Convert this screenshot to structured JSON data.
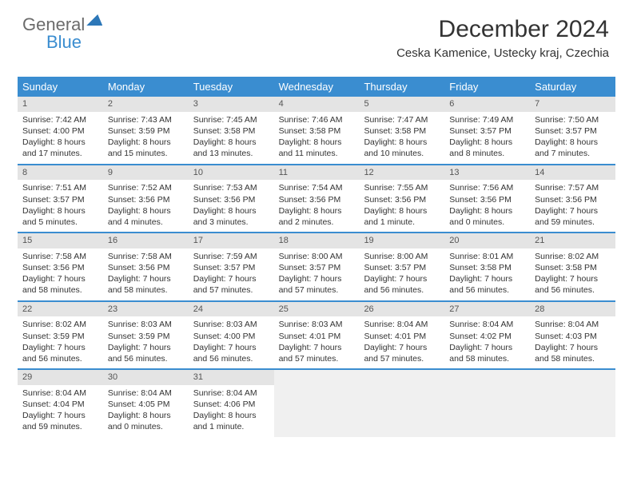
{
  "logo": {
    "part1": "General",
    "part2": "Blue"
  },
  "title": "December 2024",
  "location": "Ceska Kamenice, Ustecky kraj, Czechia",
  "colors": {
    "header_bg": "#3a8dd0",
    "daynum_bg": "#e4e4e4",
    "week_border": "#3a8dd0",
    "empty_bg": "#f0f0f0",
    "text": "#333333"
  },
  "calendar": {
    "day_headers": [
      "Sunday",
      "Monday",
      "Tuesday",
      "Wednesday",
      "Thursday",
      "Friday",
      "Saturday"
    ],
    "weeks": [
      [
        {
          "day": "1",
          "sunrise": "Sunrise: 7:42 AM",
          "sunset": "Sunset: 4:00 PM",
          "daylight1": "Daylight: 8 hours",
          "daylight2": "and 17 minutes."
        },
        {
          "day": "2",
          "sunrise": "Sunrise: 7:43 AM",
          "sunset": "Sunset: 3:59 PM",
          "daylight1": "Daylight: 8 hours",
          "daylight2": "and 15 minutes."
        },
        {
          "day": "3",
          "sunrise": "Sunrise: 7:45 AM",
          "sunset": "Sunset: 3:58 PM",
          "daylight1": "Daylight: 8 hours",
          "daylight2": "and 13 minutes."
        },
        {
          "day": "4",
          "sunrise": "Sunrise: 7:46 AM",
          "sunset": "Sunset: 3:58 PM",
          "daylight1": "Daylight: 8 hours",
          "daylight2": "and 11 minutes."
        },
        {
          "day": "5",
          "sunrise": "Sunrise: 7:47 AM",
          "sunset": "Sunset: 3:58 PM",
          "daylight1": "Daylight: 8 hours",
          "daylight2": "and 10 minutes."
        },
        {
          "day": "6",
          "sunrise": "Sunrise: 7:49 AM",
          "sunset": "Sunset: 3:57 PM",
          "daylight1": "Daylight: 8 hours",
          "daylight2": "and 8 minutes."
        },
        {
          "day": "7",
          "sunrise": "Sunrise: 7:50 AM",
          "sunset": "Sunset: 3:57 PM",
          "daylight1": "Daylight: 8 hours",
          "daylight2": "and 7 minutes."
        }
      ],
      [
        {
          "day": "8",
          "sunrise": "Sunrise: 7:51 AM",
          "sunset": "Sunset: 3:57 PM",
          "daylight1": "Daylight: 8 hours",
          "daylight2": "and 5 minutes."
        },
        {
          "day": "9",
          "sunrise": "Sunrise: 7:52 AM",
          "sunset": "Sunset: 3:56 PM",
          "daylight1": "Daylight: 8 hours",
          "daylight2": "and 4 minutes."
        },
        {
          "day": "10",
          "sunrise": "Sunrise: 7:53 AM",
          "sunset": "Sunset: 3:56 PM",
          "daylight1": "Daylight: 8 hours",
          "daylight2": "and 3 minutes."
        },
        {
          "day": "11",
          "sunrise": "Sunrise: 7:54 AM",
          "sunset": "Sunset: 3:56 PM",
          "daylight1": "Daylight: 8 hours",
          "daylight2": "and 2 minutes."
        },
        {
          "day": "12",
          "sunrise": "Sunrise: 7:55 AM",
          "sunset": "Sunset: 3:56 PM",
          "daylight1": "Daylight: 8 hours",
          "daylight2": "and 1 minute."
        },
        {
          "day": "13",
          "sunrise": "Sunrise: 7:56 AM",
          "sunset": "Sunset: 3:56 PM",
          "daylight1": "Daylight: 8 hours",
          "daylight2": "and 0 minutes."
        },
        {
          "day": "14",
          "sunrise": "Sunrise: 7:57 AM",
          "sunset": "Sunset: 3:56 PM",
          "daylight1": "Daylight: 7 hours",
          "daylight2": "and 59 minutes."
        }
      ],
      [
        {
          "day": "15",
          "sunrise": "Sunrise: 7:58 AM",
          "sunset": "Sunset: 3:56 PM",
          "daylight1": "Daylight: 7 hours",
          "daylight2": "and 58 minutes."
        },
        {
          "day": "16",
          "sunrise": "Sunrise: 7:58 AM",
          "sunset": "Sunset: 3:56 PM",
          "daylight1": "Daylight: 7 hours",
          "daylight2": "and 58 minutes."
        },
        {
          "day": "17",
          "sunrise": "Sunrise: 7:59 AM",
          "sunset": "Sunset: 3:57 PM",
          "daylight1": "Daylight: 7 hours",
          "daylight2": "and 57 minutes."
        },
        {
          "day": "18",
          "sunrise": "Sunrise: 8:00 AM",
          "sunset": "Sunset: 3:57 PM",
          "daylight1": "Daylight: 7 hours",
          "daylight2": "and 57 minutes."
        },
        {
          "day": "19",
          "sunrise": "Sunrise: 8:00 AM",
          "sunset": "Sunset: 3:57 PM",
          "daylight1": "Daylight: 7 hours",
          "daylight2": "and 56 minutes."
        },
        {
          "day": "20",
          "sunrise": "Sunrise: 8:01 AM",
          "sunset": "Sunset: 3:58 PM",
          "daylight1": "Daylight: 7 hours",
          "daylight2": "and 56 minutes."
        },
        {
          "day": "21",
          "sunrise": "Sunrise: 8:02 AM",
          "sunset": "Sunset: 3:58 PM",
          "daylight1": "Daylight: 7 hours",
          "daylight2": "and 56 minutes."
        }
      ],
      [
        {
          "day": "22",
          "sunrise": "Sunrise: 8:02 AM",
          "sunset": "Sunset: 3:59 PM",
          "daylight1": "Daylight: 7 hours",
          "daylight2": "and 56 minutes."
        },
        {
          "day": "23",
          "sunrise": "Sunrise: 8:03 AM",
          "sunset": "Sunset: 3:59 PM",
          "daylight1": "Daylight: 7 hours",
          "daylight2": "and 56 minutes."
        },
        {
          "day": "24",
          "sunrise": "Sunrise: 8:03 AM",
          "sunset": "Sunset: 4:00 PM",
          "daylight1": "Daylight: 7 hours",
          "daylight2": "and 56 minutes."
        },
        {
          "day": "25",
          "sunrise": "Sunrise: 8:03 AM",
          "sunset": "Sunset: 4:01 PM",
          "daylight1": "Daylight: 7 hours",
          "daylight2": "and 57 minutes."
        },
        {
          "day": "26",
          "sunrise": "Sunrise: 8:04 AM",
          "sunset": "Sunset: 4:01 PM",
          "daylight1": "Daylight: 7 hours",
          "daylight2": "and 57 minutes."
        },
        {
          "day": "27",
          "sunrise": "Sunrise: 8:04 AM",
          "sunset": "Sunset: 4:02 PM",
          "daylight1": "Daylight: 7 hours",
          "daylight2": "and 58 minutes."
        },
        {
          "day": "28",
          "sunrise": "Sunrise: 8:04 AM",
          "sunset": "Sunset: 4:03 PM",
          "daylight1": "Daylight: 7 hours",
          "daylight2": "and 58 minutes."
        }
      ],
      [
        {
          "day": "29",
          "sunrise": "Sunrise: 8:04 AM",
          "sunset": "Sunset: 4:04 PM",
          "daylight1": "Daylight: 7 hours",
          "daylight2": "and 59 minutes."
        },
        {
          "day": "30",
          "sunrise": "Sunrise: 8:04 AM",
          "sunset": "Sunset: 4:05 PM",
          "daylight1": "Daylight: 8 hours",
          "daylight2": "and 0 minutes."
        },
        {
          "day": "31",
          "sunrise": "Sunrise: 8:04 AM",
          "sunset": "Sunset: 4:06 PM",
          "daylight1": "Daylight: 8 hours",
          "daylight2": "and 1 minute."
        },
        {
          "empty": true
        },
        {
          "empty": true
        },
        {
          "empty": true
        },
        {
          "empty": true
        }
      ]
    ]
  }
}
